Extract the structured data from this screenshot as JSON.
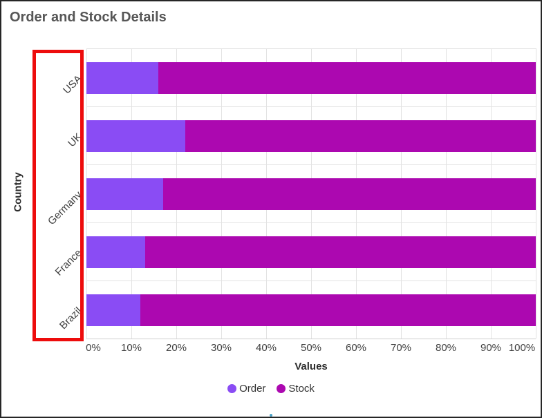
{
  "window": {
    "title": "Order and Stock Details"
  },
  "chart_data": {
    "type": "bar",
    "orientation": "horizontal",
    "stacking": "100%",
    "title": "Order and Stock Details",
    "xlabel": "Values",
    "ylabel": "Country",
    "categories": [
      "USA",
      "UK",
      "Germany",
      "France",
      "Brazil"
    ],
    "series": [
      {
        "name": "Order",
        "color": "#8a4cf4",
        "values": [
          16,
          22,
          17,
          13,
          12
        ]
      },
      {
        "name": "Stock",
        "color": "#ac08b0",
        "values": [
          84,
          78,
          83,
          87,
          88
        ]
      }
    ],
    "x_ticks": [
      "0%",
      "10%",
      "20%",
      "30%",
      "40%",
      "50%",
      "60%",
      "70%",
      "80%",
      "90%",
      "100%"
    ],
    "xlim": [
      0,
      100
    ],
    "grid": true,
    "legend": [
      "Order",
      "Stock"
    ],
    "legend_position": "bottom",
    "colors": {
      "gridline": "#e3e3e3",
      "axis_line": "#cfcfcf",
      "title_text": "#565656",
      "label_text": "#3f3f3f"
    }
  },
  "annotation": {
    "type": "highlight-rectangle",
    "target": "y-axis-category-labels",
    "color": "#ed0c0c"
  }
}
